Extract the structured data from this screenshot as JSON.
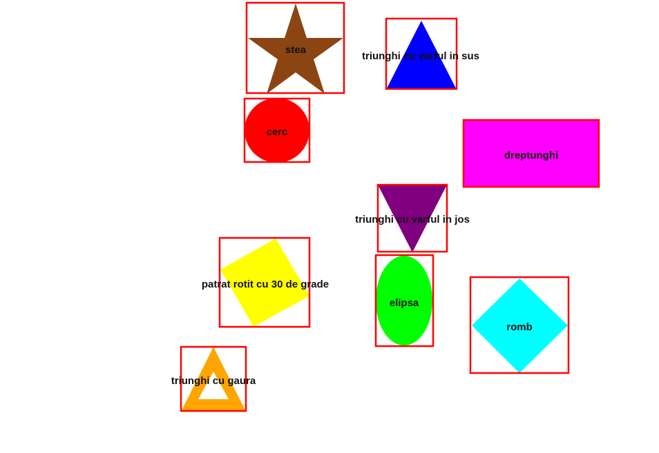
{
  "colors": {
    "box": "#ff0000",
    "label": "#111111",
    "stea": "#8b4513",
    "triunghi_sus": "#0000ff",
    "cerc": "#ff0000",
    "dreptunghi": "#ff00ff",
    "triunghi_jos": "#800080",
    "patrat_rotit": "#ffff00",
    "elipsa": "#00ff00",
    "romb": "#00ffff",
    "triunghi_gaura": "#ffa500"
  },
  "shapes": {
    "stea": {
      "label": "stea",
      "icon": "star"
    },
    "triunghi_sus": {
      "label": "triunghi cu varful in sus",
      "icon": "triangle-up"
    },
    "cerc": {
      "label": "cerc",
      "icon": "circle"
    },
    "dreptunghi": {
      "label": "dreptunghi",
      "icon": "rectangle"
    },
    "triunghi_jos": {
      "label": "triunghi cu varful in jos",
      "icon": "triangle-down"
    },
    "patrat_rotit": {
      "label": "patrat rotit cu 30 de grade",
      "icon": "rotated-square"
    },
    "elipsa": {
      "label": "elipsa",
      "icon": "ellipse"
    },
    "romb": {
      "label": "romb",
      "icon": "rhombus"
    },
    "triunghi_gaura": {
      "label": "triunghi cu gaura",
      "icon": "hollow-triangle"
    }
  }
}
